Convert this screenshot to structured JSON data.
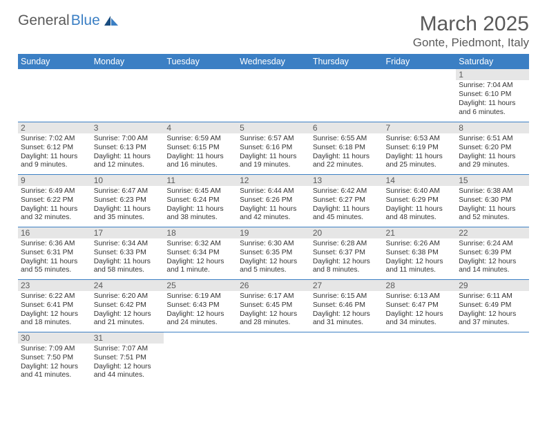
{
  "logo": {
    "text_gray": "General",
    "text_blue": "Blue"
  },
  "title": "March 2025",
  "location": "Gonte, Piedmont, Italy",
  "colors": {
    "header_bg": "#3b7fc4",
    "header_fg": "#ffffff",
    "daynum_bg": "#e6e6e6",
    "text": "#333333",
    "muted": "#5a5a5a"
  },
  "day_names": [
    "Sunday",
    "Monday",
    "Tuesday",
    "Wednesday",
    "Thursday",
    "Friday",
    "Saturday"
  ],
  "weeks": [
    [
      null,
      null,
      null,
      null,
      null,
      null,
      {
        "n": "1",
        "sr": "7:04 AM",
        "ss": "6:10 PM",
        "dl": "11 hours and 6 minutes."
      }
    ],
    [
      {
        "n": "2",
        "sr": "7:02 AM",
        "ss": "6:12 PM",
        "dl": "11 hours and 9 minutes."
      },
      {
        "n": "3",
        "sr": "7:00 AM",
        "ss": "6:13 PM",
        "dl": "11 hours and 12 minutes."
      },
      {
        "n": "4",
        "sr": "6:59 AM",
        "ss": "6:15 PM",
        "dl": "11 hours and 16 minutes."
      },
      {
        "n": "5",
        "sr": "6:57 AM",
        "ss": "6:16 PM",
        "dl": "11 hours and 19 minutes."
      },
      {
        "n": "6",
        "sr": "6:55 AM",
        "ss": "6:18 PM",
        "dl": "11 hours and 22 minutes."
      },
      {
        "n": "7",
        "sr": "6:53 AM",
        "ss": "6:19 PM",
        "dl": "11 hours and 25 minutes."
      },
      {
        "n": "8",
        "sr": "6:51 AM",
        "ss": "6:20 PM",
        "dl": "11 hours and 29 minutes."
      }
    ],
    [
      {
        "n": "9",
        "sr": "6:49 AM",
        "ss": "6:22 PM",
        "dl": "11 hours and 32 minutes."
      },
      {
        "n": "10",
        "sr": "6:47 AM",
        "ss": "6:23 PM",
        "dl": "11 hours and 35 minutes."
      },
      {
        "n": "11",
        "sr": "6:45 AM",
        "ss": "6:24 PM",
        "dl": "11 hours and 38 minutes."
      },
      {
        "n": "12",
        "sr": "6:44 AM",
        "ss": "6:26 PM",
        "dl": "11 hours and 42 minutes."
      },
      {
        "n": "13",
        "sr": "6:42 AM",
        "ss": "6:27 PM",
        "dl": "11 hours and 45 minutes."
      },
      {
        "n": "14",
        "sr": "6:40 AM",
        "ss": "6:29 PM",
        "dl": "11 hours and 48 minutes."
      },
      {
        "n": "15",
        "sr": "6:38 AM",
        "ss": "6:30 PM",
        "dl": "11 hours and 52 minutes."
      }
    ],
    [
      {
        "n": "16",
        "sr": "6:36 AM",
        "ss": "6:31 PM",
        "dl": "11 hours and 55 minutes."
      },
      {
        "n": "17",
        "sr": "6:34 AM",
        "ss": "6:33 PM",
        "dl": "11 hours and 58 minutes."
      },
      {
        "n": "18",
        "sr": "6:32 AM",
        "ss": "6:34 PM",
        "dl": "12 hours and 1 minute."
      },
      {
        "n": "19",
        "sr": "6:30 AM",
        "ss": "6:35 PM",
        "dl": "12 hours and 5 minutes."
      },
      {
        "n": "20",
        "sr": "6:28 AM",
        "ss": "6:37 PM",
        "dl": "12 hours and 8 minutes."
      },
      {
        "n": "21",
        "sr": "6:26 AM",
        "ss": "6:38 PM",
        "dl": "12 hours and 11 minutes."
      },
      {
        "n": "22",
        "sr": "6:24 AM",
        "ss": "6:39 PM",
        "dl": "12 hours and 14 minutes."
      }
    ],
    [
      {
        "n": "23",
        "sr": "6:22 AM",
        "ss": "6:41 PM",
        "dl": "12 hours and 18 minutes."
      },
      {
        "n": "24",
        "sr": "6:20 AM",
        "ss": "6:42 PM",
        "dl": "12 hours and 21 minutes."
      },
      {
        "n": "25",
        "sr": "6:19 AM",
        "ss": "6:43 PM",
        "dl": "12 hours and 24 minutes."
      },
      {
        "n": "26",
        "sr": "6:17 AM",
        "ss": "6:45 PM",
        "dl": "12 hours and 28 minutes."
      },
      {
        "n": "27",
        "sr": "6:15 AM",
        "ss": "6:46 PM",
        "dl": "12 hours and 31 minutes."
      },
      {
        "n": "28",
        "sr": "6:13 AM",
        "ss": "6:47 PM",
        "dl": "12 hours and 34 minutes."
      },
      {
        "n": "29",
        "sr": "6:11 AM",
        "ss": "6:49 PM",
        "dl": "12 hours and 37 minutes."
      }
    ],
    [
      {
        "n": "30",
        "sr": "7:09 AM",
        "ss": "7:50 PM",
        "dl": "12 hours and 41 minutes."
      },
      {
        "n": "31",
        "sr": "7:07 AM",
        "ss": "7:51 PM",
        "dl": "12 hours and 44 minutes."
      },
      null,
      null,
      null,
      null,
      null
    ]
  ],
  "labels": {
    "sunrise": "Sunrise:",
    "sunset": "Sunset:",
    "daylight": "Daylight:"
  }
}
